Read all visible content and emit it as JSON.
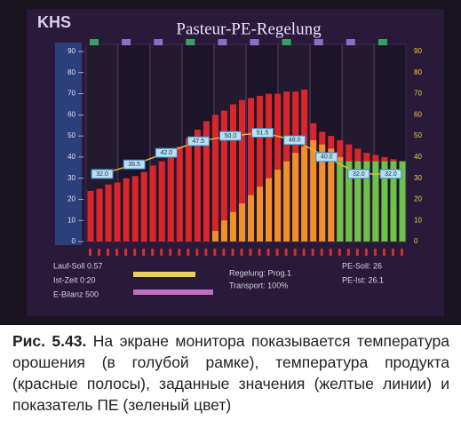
{
  "chart_data": {
    "type": "bar",
    "logo": "KHS",
    "title": "Pasteur-PE-Regelung",
    "ylim": [
      0,
      90
    ],
    "yticks": [
      0,
      10,
      20,
      30,
      40,
      50,
      60,
      70,
      80,
      90
    ],
    "series": [
      {
        "color": "#d8262a",
        "values": [
          24,
          25,
          27,
          28,
          30,
          31,
          33,
          36,
          38,
          41,
          45,
          49,
          53,
          57,
          60,
          62,
          65,
          67,
          68,
          69,
          70,
          70,
          71,
          71,
          72,
          56,
          52,
          50,
          48,
          46,
          44,
          42,
          41,
          40,
          39,
          38
        ]
      },
      {
        "color": "#f0902a",
        "values": [
          null,
          null,
          null,
          null,
          null,
          null,
          null,
          null,
          null,
          null,
          null,
          null,
          null,
          null,
          5,
          10,
          14,
          18,
          22,
          26,
          30,
          34,
          38,
          42,
          45,
          48,
          46,
          44,
          40,
          36,
          30,
          24,
          20,
          18,
          16,
          14
        ]
      },
      {
        "color": "#6cc24a",
        "values": [
          null,
          null,
          null,
          null,
          null,
          null,
          null,
          null,
          null,
          null,
          null,
          null,
          null,
          null,
          null,
          null,
          null,
          null,
          null,
          null,
          null,
          null,
          null,
          null,
          null,
          null,
          null,
          null,
          38,
          38,
          38,
          38,
          38,
          38,
          38,
          38
        ]
      }
    ],
    "setpoints": {
      "color": "#e8b830",
      "values": [
        32,
        36.5,
        42,
        47.5,
        50,
        51.5,
        48,
        40,
        32,
        32
      ],
      "value_labels": [
        "32.0",
        "36.5",
        "42.0",
        "47.5",
        "50.0",
        "51.5",
        "48.0",
        "40.0",
        "32.0",
        "32.0"
      ]
    },
    "status": [
      "Lauf-Soll 0.57",
      "Ist-Zeit 0:20",
      "E-Bilanz 500",
      "Regelung: Prog.1",
      "Transport: 100%",
      "PE-Soll: 26",
      "PE-Ist: 26.1"
    ]
  },
  "caption": {
    "label": "Рис. 5.43.",
    "text": "На экране монитора показывается температура орошения (в голубой рамке), температура продукта (красные полосы), заданные значения (желтые линии) и показатель ПЕ (зеленый цвет)"
  }
}
